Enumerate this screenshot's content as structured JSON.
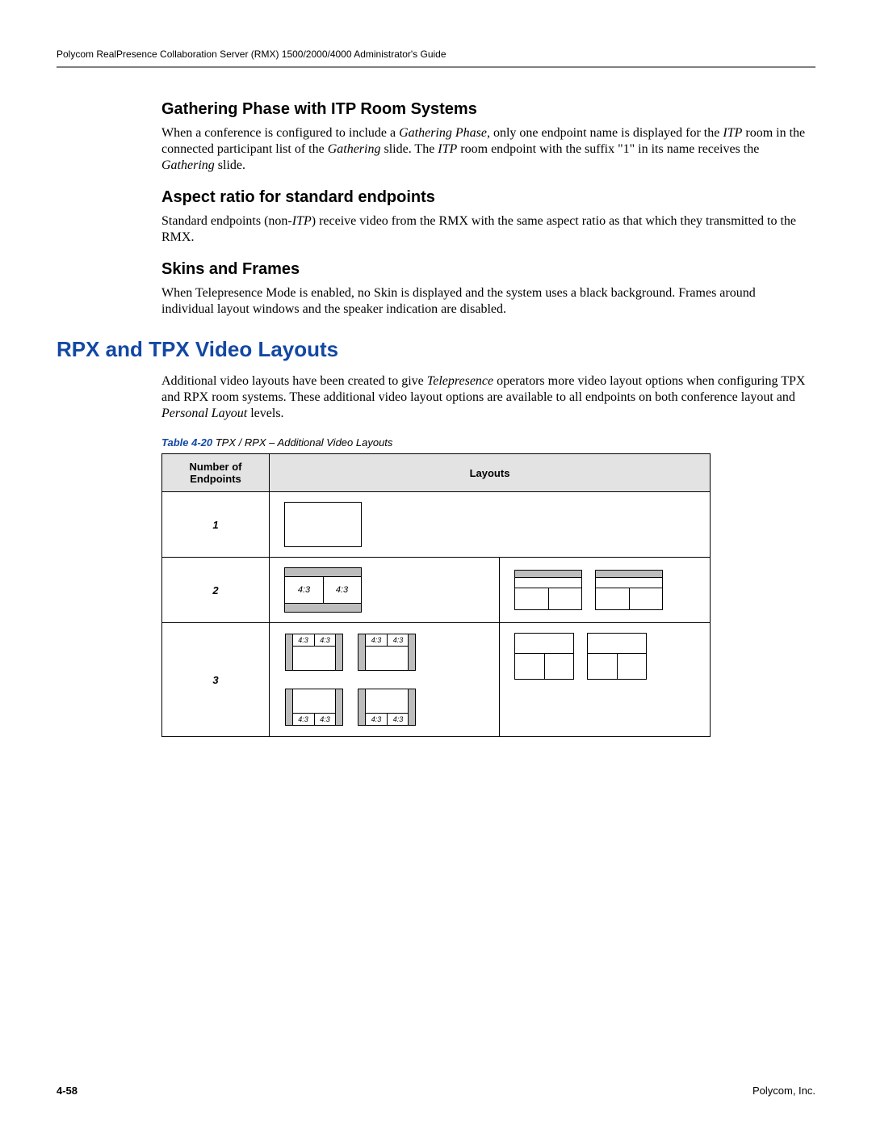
{
  "header": {
    "running": "Polycom RealPresence Collaboration Server (RMX) 1500/2000/4000 Administrator's Guide"
  },
  "sections": {
    "s1_title": "Gathering Phase with ITP Room Systems",
    "s1_body_html": "When a conference is configured to include a <i>Gathering Phase</i>, only one endpoint name is displayed for the <i>ITP</i> room in the connected participant list of the <i>Gathering</i> slide. The <i>ITP</i> room endpoint with the suffix \"1\" in its name receives the <i>Gathering</i> slide.",
    "s2_title": "Aspect ratio for standard endpoints",
    "s2_body_html": "Standard endpoints (non-<i>ITP</i>) receive video from the RMX with the same aspect ratio as that which they transmitted to the RMX.",
    "s3_title": "Skins and Frames",
    "s3_body_html": "When Telepresence Mode is enabled, no Skin is displayed and the system uses a black background. Frames around individual layout windows and the speaker indication are disabled."
  },
  "h2": "RPX and TPX Video Layouts",
  "h2_body_html": "Additional video layouts have been created to give <i>Telepresence</i> operators more video layout options when configuring TPX and RPX room systems. These additional video layout options are available to all endpoints on both conference layout and <i>Personal Layout</i> levels.",
  "table": {
    "caption_label": "Table 4-20",
    "caption_text": " TPX / RPX – Additional Video Layouts",
    "head_col1": "Number of Endpoints",
    "head_col2": "Layouts",
    "rows": {
      "r1": "1",
      "r2": "2",
      "r3": "3"
    },
    "ratio": "4:3"
  },
  "footer": {
    "page": "4-58",
    "company": "Polycom, Inc."
  }
}
